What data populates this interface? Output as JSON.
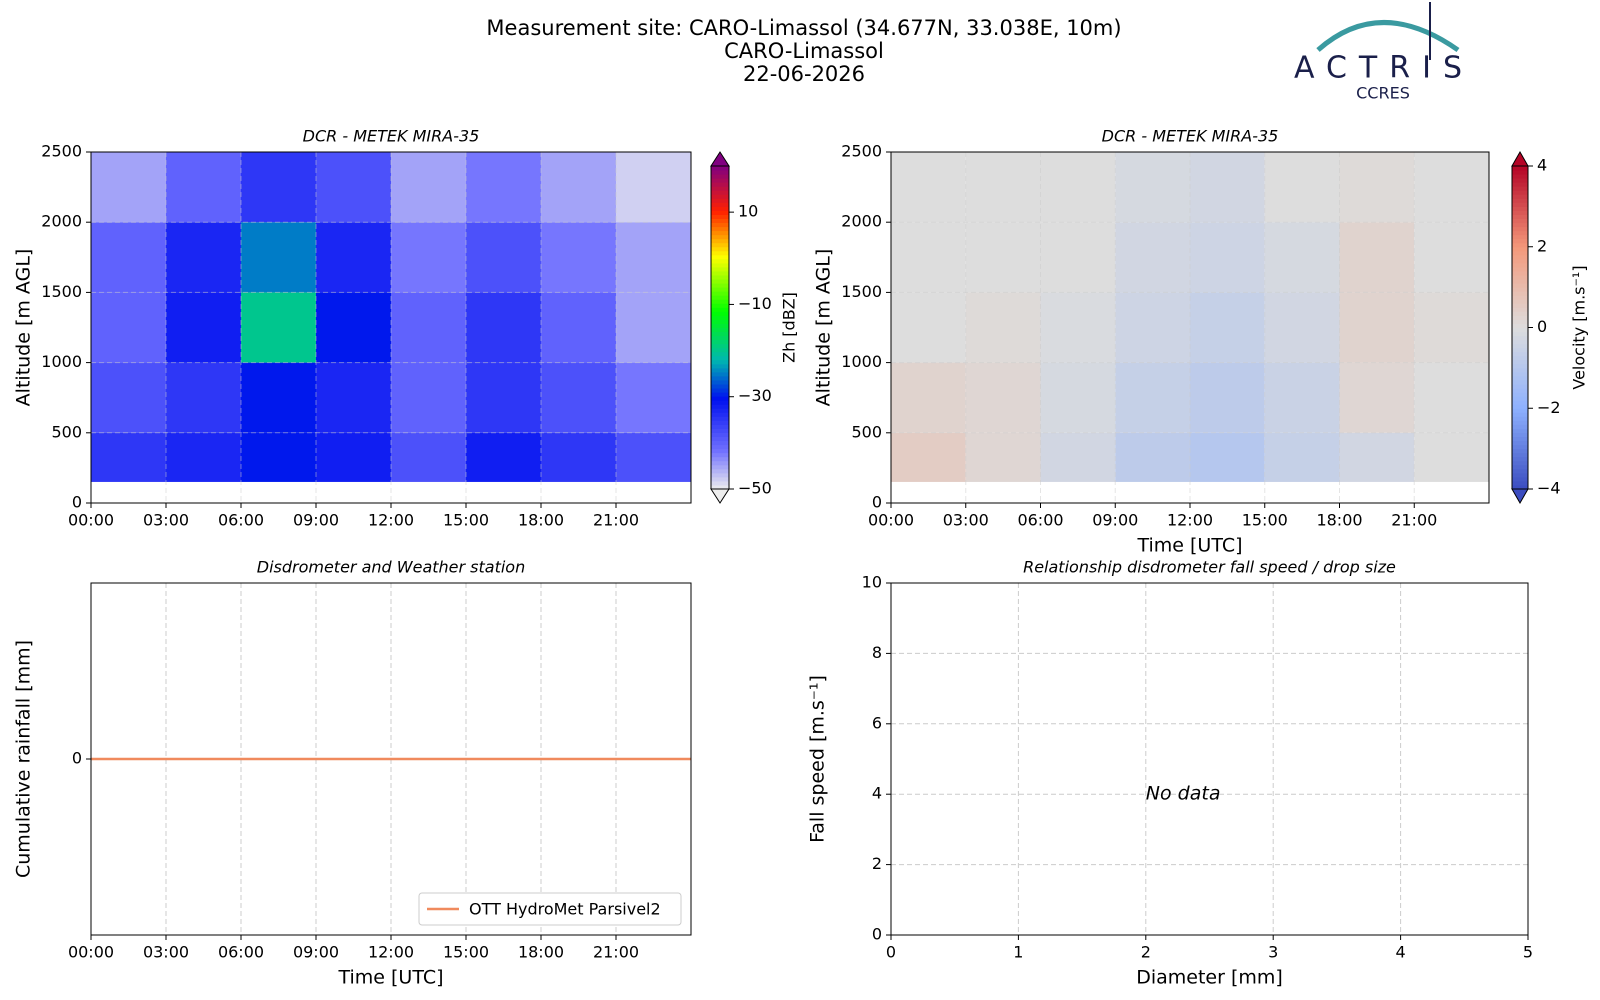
{
  "header": {
    "title": "Measurement site: CARO-Limassol (34.677N, 33.038E, 10m)",
    "site": "CARO-Limassol",
    "date": "22-06-2026"
  },
  "logo": {
    "name": "ACTRIS",
    "group": "CCRES"
  },
  "chart_data": [
    {
      "type": "heatmap",
      "title": "DCR - METEK MIRA-35",
      "y_label": "Altitude [m AGL]",
      "x": [
        0,
        3,
        6,
        9,
        12,
        15,
        18,
        21,
        24
      ],
      "y": [
        150,
        500,
        1000,
        1500,
        2000,
        2500
      ],
      "z": [
        [
          -35,
          -33,
          -30,
          -32,
          -38,
          -32,
          -35,
          -38
        ],
        [
          -38,
          -35,
          -30,
          -33,
          -40,
          -35,
          -38,
          -42
        ],
        [
          -40,
          -32,
          -20,
          -30,
          -40,
          -35,
          -40,
          -45
        ],
        [
          -40,
          -33,
          -25,
          -33,
          -42,
          -38,
          -42,
          -45
        ],
        [
          -45,
          -40,
          -35,
          -38,
          -45,
          -42,
          -45,
          -48
        ]
      ],
      "xlim": [
        0,
        24
      ],
      "xticks": [
        {
          "value": 0,
          "label": "00:00"
        },
        {
          "value": 3,
          "label": "03:00"
        },
        {
          "value": 6,
          "label": "06:00"
        },
        {
          "value": 9,
          "label": "09:00"
        },
        {
          "value": 12,
          "label": "12:00"
        },
        {
          "value": 15,
          "label": "15:00"
        },
        {
          "value": 18,
          "label": "18:00"
        },
        {
          "value": 21,
          "label": "21:00"
        }
      ],
      "ylim": [
        0,
        2500
      ],
      "yticks": [
        0,
        500,
        1000,
        1500,
        2000,
        2500
      ],
      "grid": true,
      "colorbar": {
        "label": "Zh [dBZ]",
        "colormap": "rainbow",
        "clim": [
          -50,
          20
        ],
        "ticks": [
          {
            "value": -50,
            "label": "−50"
          },
          {
            "value": -30,
            "label": "−30"
          },
          {
            "value": -10,
            "label": "−10"
          },
          10
        ]
      }
    },
    {
      "type": "heatmap",
      "title": "DCR - METEK MIRA-35",
      "x_label": "Time [UTC]",
      "y_label": "Altitude [m AGL]",
      "x": [
        0,
        3,
        6,
        9,
        12,
        15,
        18,
        21,
        24
      ],
      "y": [
        150,
        500,
        1000,
        1500,
        2000,
        2500
      ],
      "z": [
        [
          0.5,
          0.2,
          -0.3,
          -0.8,
          -1,
          -0.6,
          -0.3,
          0
        ],
        [
          0.3,
          0.2,
          -0.2,
          -0.6,
          -0.8,
          -0.5,
          0.2,
          0
        ],
        [
          0,
          0.1,
          -0.1,
          -0.4,
          -0.6,
          -0.3,
          0.3,
          0.1
        ],
        [
          0,
          0,
          0,
          -0.3,
          -0.4,
          -0.2,
          0.3,
          0
        ],
        [
          0,
          0,
          0,
          -0.2,
          -0.3,
          0,
          0.1,
          0
        ]
      ],
      "xlim": [
        0,
        24
      ],
      "xticks": [
        {
          "value": 0,
          "label": "00:00"
        },
        {
          "value": 3,
          "label": "03:00"
        },
        {
          "value": 6,
          "label": "06:00"
        },
        {
          "value": 9,
          "label": "09:00"
        },
        {
          "value": 12,
          "label": "12:00"
        },
        {
          "value": 15,
          "label": "15:00"
        },
        {
          "value": 18,
          "label": "18:00"
        },
        {
          "value": 21,
          "label": "21:00"
        }
      ],
      "ylim": [
        0,
        2500
      ],
      "yticks": [
        0,
        500,
        1000,
        1500,
        2000,
        2500
      ],
      "grid": true,
      "colorbar": {
        "label": "Velocity [m.s⁻¹]",
        "colormap": "coolwarm",
        "clim": [
          -4,
          4
        ],
        "ticks": [
          {
            "value": -4,
            "label": "−4"
          },
          {
            "value": -2,
            "label": "−2"
          },
          0,
          2,
          4
        ]
      }
    },
    {
      "type": "line",
      "title": "Disdrometer and Weather station",
      "x_label": "Time [UTC]",
      "y_label": "Cumulative rainfall [mm]",
      "x": [
        0,
        24
      ],
      "series": [
        {
          "name": "OTT HydroMet Parsivel2",
          "color": "#f08a5d",
          "values": [
            0,
            0
          ]
        }
      ],
      "xlim": [
        0,
        24
      ],
      "xticks": [
        {
          "value": 0,
          "label": "00:00"
        },
        {
          "value": 3,
          "label": "03:00"
        },
        {
          "value": 6,
          "label": "06:00"
        },
        {
          "value": 9,
          "label": "09:00"
        },
        {
          "value": 12,
          "label": "12:00"
        },
        {
          "value": 15,
          "label": "15:00"
        },
        {
          "value": 18,
          "label": "18:00"
        },
        {
          "value": 21,
          "label": "21:00"
        }
      ],
      "ylim": [
        -0.055,
        0.055
      ],
      "yticks": [
        0
      ],
      "grid": true,
      "legend": "lower right"
    },
    {
      "type": "scatter",
      "title": "Relationship disdrometer fall speed / drop size",
      "x_label": "Diameter [mm]",
      "y_label": "Fall speed [m.s⁻¹]",
      "xlim": [
        0,
        5
      ],
      "xticks": [
        0,
        1,
        2,
        3,
        4,
        5
      ],
      "ylim": [
        0,
        10
      ],
      "yticks": [
        0,
        2,
        4,
        6,
        8,
        10
      ],
      "grid": true,
      "annotation": "No data"
    }
  ]
}
